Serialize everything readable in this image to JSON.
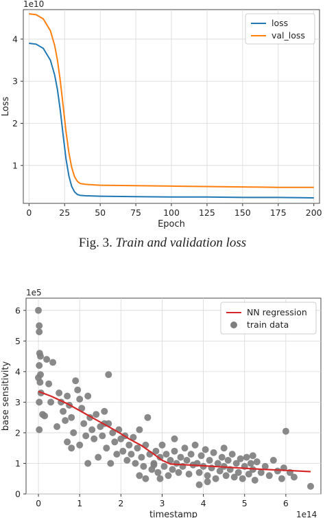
{
  "caption": {
    "prefix": "Fig. 3.",
    "text": "Train and validation loss"
  },
  "colors": {
    "loss": "#1f77b4",
    "val_loss": "#ff7f0e",
    "regression": "#d62728",
    "train": "#7f7f7f"
  },
  "chart_data": [
    {
      "type": "line",
      "xlabel": "Epoch",
      "ylabel": "Loss",
      "offset_label": "1e10",
      "xlim": [
        -4,
        204
      ],
      "ylim": [
        0.1,
        4.7
      ],
      "xticks": [
        0,
        25,
        50,
        75,
        100,
        125,
        150,
        175,
        200
      ],
      "yticks": [
        1,
        2,
        3,
        4
      ],
      "grid": true,
      "legend": "top-right",
      "series": [
        {
          "name": "loss",
          "x": [
            0,
            5,
            10,
            15,
            18,
            20,
            22,
            24,
            26,
            28,
            30,
            32,
            34,
            36,
            40,
            50,
            75,
            100,
            125,
            150,
            175,
            200
          ],
          "y": [
            3.9,
            3.88,
            3.78,
            3.5,
            3.15,
            2.8,
            2.3,
            1.7,
            1.15,
            0.75,
            0.5,
            0.37,
            0.31,
            0.29,
            0.28,
            0.27,
            0.26,
            0.25,
            0.25,
            0.24,
            0.24,
            0.23
          ]
        },
        {
          "name": "val_loss",
          "x": [
            0,
            5,
            10,
            15,
            18,
            20,
            22,
            24,
            26,
            28,
            30,
            32,
            34,
            36,
            40,
            50,
            75,
            100,
            125,
            150,
            175,
            200
          ],
          "y": [
            4.6,
            4.58,
            4.48,
            4.2,
            3.85,
            3.5,
            3.0,
            2.4,
            1.8,
            1.3,
            0.95,
            0.73,
            0.62,
            0.57,
            0.55,
            0.53,
            0.52,
            0.51,
            0.5,
            0.49,
            0.48,
            0.48
          ]
        }
      ]
    },
    {
      "type": "scatter",
      "xlabel": "timestamp",
      "ylabel": "base sensitivity",
      "x_offset_label": "1e14",
      "y_offset_label": "1e5",
      "xlim": [
        -0.3,
        6.85
      ],
      "ylim": [
        0,
        6.4
      ],
      "xticks": [
        0,
        1,
        2,
        3,
        4,
        5,
        6
      ],
      "yticks": [
        0,
        1,
        2,
        3,
        4,
        5,
        6
      ],
      "grid": true,
      "legend": "top-right",
      "series": [
        {
          "name": "NN regression",
          "x": [
            0,
            0.3,
            0.7,
            1.1,
            1.5,
            1.9,
            2.2,
            2.5,
            2.8,
            3.0,
            3.2,
            3.5,
            4.0,
            4.5,
            5.0,
            5.5,
            6.0,
            6.6
          ],
          "y": [
            3.35,
            3.2,
            2.95,
            2.65,
            2.35,
            2.05,
            1.8,
            1.58,
            1.3,
            1.1,
            0.98,
            0.96,
            0.92,
            0.88,
            0.84,
            0.8,
            0.77,
            0.73
          ]
        },
        {
          "name": "train data",
          "points": [
            [
              0,
              6.0
            ],
            [
              0.02,
              5.5
            ],
            [
              0.02,
              5.3
            ],
            [
              0.03,
              4.6
            ],
            [
              0.05,
              4.5
            ],
            [
              0.02,
              4.2
            ],
            [
              0.05,
              3.9
            ],
            [
              0,
              3.8
            ],
            [
              0.04,
              3.65
            ],
            [
              0.06,
              3.3
            ],
            [
              0.02,
              3.0
            ],
            [
              0.1,
              2.6
            ],
            [
              0.15,
              2.55
            ],
            [
              0.02,
              2.1
            ],
            [
              0.2,
              4.4
            ],
            [
              0.35,
              4.3
            ],
            [
              0.25,
              3.6
            ],
            [
              0.3,
              3.0
            ],
            [
              0.45,
              2.2
            ],
            [
              0.5,
              3.3
            ],
            [
              0.55,
              3.0
            ],
            [
              0.6,
              2.7
            ],
            [
              0.65,
              2.4
            ],
            [
              0.7,
              3.2
            ],
            [
              0.75,
              2.9
            ],
            [
              0.8,
              2.5
            ],
            [
              0.85,
              2.0
            ],
            [
              0.9,
              3.7
            ],
            [
              0.95,
              3.4
            ],
            [
              1.0,
              3.1
            ],
            [
              1.05,
              2.8
            ],
            [
              1.1,
              2.3
            ],
            [
              1.15,
              1.9
            ],
            [
              1.2,
              3.2
            ],
            [
              1.25,
              2.5
            ],
            [
              1.3,
              2.1
            ],
            [
              0.7,
              1.7
            ],
            [
              0.8,
              1.5
            ],
            [
              1.0,
              1.6
            ],
            [
              1.35,
              1.8
            ],
            [
              1.4,
              2.6
            ],
            [
              1.45,
              1.2
            ],
            [
              1.5,
              2.2
            ],
            [
              1.55,
              1.9
            ],
            [
              1.6,
              2.7
            ],
            [
              1.65,
              1.5
            ],
            [
              1.7,
              2.3
            ],
            [
              1.75,
              1.0
            ],
            [
              1.8,
              2.0
            ],
            [
              1.85,
              1.7
            ],
            [
              1.9,
              1.3
            ],
            [
              1.95,
              2.1
            ],
            [
              2.0,
              1.8
            ],
            [
              2.05,
              1.4
            ],
            [
              2.1,
              1.9
            ],
            [
              2.15,
              1.1
            ],
            [
              2.2,
              1.6
            ],
            [
              2.25,
              1.3
            ],
            [
              2.3,
              1.85
            ],
            [
              2.35,
              1.0
            ],
            [
              2.4,
              1.5
            ],
            [
              2.45,
              2.1
            ],
            [
              2.5,
              1.2
            ],
            [
              2.55,
              0.9
            ],
            [
              2.6,
              1.6
            ],
            [
              2.65,
              2.5
            ],
            [
              2.7,
              1.3
            ],
            [
              2.75,
              0.8
            ],
            [
              2.8,
              1.0
            ],
            [
              2.85,
              1.4
            ],
            [
              2.9,
              0.7
            ],
            [
              2.95,
              1.2
            ],
            [
              1.7,
              3.9
            ],
            [
              1.6,
              2.3
            ],
            [
              1.2,
              1.0
            ],
            [
              2.45,
              0.6
            ],
            [
              2.6,
              0.5
            ],
            [
              2.8,
              0.95
            ],
            [
              3.0,
              1.6
            ],
            [
              3.05,
              0.9
            ],
            [
              3.1,
              1.3
            ],
            [
              3.15,
              0.6
            ],
            [
              3.2,
              1.1
            ],
            [
              3.25,
              0.8
            ],
            [
              3.3,
              1.4
            ],
            [
              3.35,
              1.0
            ],
            [
              3.4,
              0.7
            ],
            [
              3.45,
              1.2
            ],
            [
              3.5,
              0.9
            ],
            [
              3.55,
              1.5
            ],
            [
              3.6,
              1.1
            ],
            [
              3.65,
              0.65
            ],
            [
              3.7,
              1.3
            ],
            [
              3.75,
              0.95
            ],
            [
              3.8,
              1.6
            ],
            [
              3.85,
              1.0
            ],
            [
              3.9,
              0.7
            ],
            [
              3.95,
              1.25
            ],
            [
              4.0,
              0.9
            ],
            [
              4.05,
              1.45
            ],
            [
              4.1,
              0.6
            ],
            [
              4.15,
              1.1
            ],
            [
              4.2,
              0.85
            ],
            [
              4.25,
              1.35
            ],
            [
              4.3,
              0.5
            ],
            [
              4.35,
              1.0
            ],
            [
              4.4,
              0.75
            ],
            [
              4.45,
              1.2
            ],
            [
              4.5,
              0.9
            ],
            [
              4.55,
              0.6
            ],
            [
              4.6,
              1.1
            ],
            [
              4.65,
              0.8
            ],
            [
              4.7,
              1.3
            ],
            [
              4.75,
              0.55
            ],
            [
              4.8,
              1.0
            ],
            [
              4.85,
              0.7
            ],
            [
              4.9,
              1.15
            ],
            [
              4.95,
              0.5
            ],
            [
              5.0,
              0.9
            ],
            [
              5.05,
              1.2
            ],
            [
              5.1,
              0.65
            ],
            [
              5.15,
              1.0
            ],
            [
              5.2,
              0.8
            ],
            [
              5.25,
              0.45
            ],
            [
              5.3,
              1.05
            ],
            [
              5.4,
              0.7
            ],
            [
              5.5,
              0.9
            ],
            [
              5.6,
              0.6
            ],
            [
              5.7,
              1.1
            ],
            [
              5.8,
              0.75
            ],
            [
              5.9,
              0.5
            ],
            [
              5.95,
              0.85
            ],
            [
              6.0,
              2.05
            ],
            [
              6.1,
              0.7
            ],
            [
              6.2,
              0.55
            ],
            [
              6.6,
              0.25
            ],
            [
              3.9,
              0.3
            ],
            [
              4.1,
              0.4
            ],
            [
              4.5,
              1.5
            ],
            [
              5.2,
              1.25
            ],
            [
              3.3,
              1.8
            ],
            [
              2.95,
              0.5
            ]
          ]
        }
      ]
    }
  ]
}
